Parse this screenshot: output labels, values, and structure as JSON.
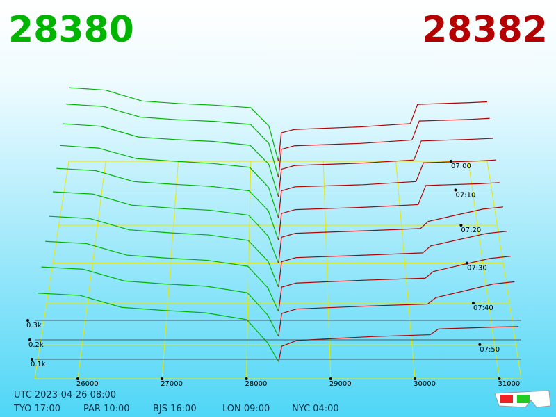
{
  "chart_data": {
    "type": "depth-3d",
    "bid_price": "28380",
    "ask_price": "28382",
    "timestamp": "UTC 2023-04-26 08:00",
    "clocks": [
      "TYO 17:00",
      "PAR 10:00",
      "BJS 16:00",
      "LON 09:00",
      "NYC 04:00"
    ],
    "bid_color": "#00b400",
    "ask_color": "#b40000",
    "xlim": [
      25490,
      31260
    ],
    "xticks": [
      26000,
      27000,
      28000,
      29000,
      30000,
      31000
    ],
    "zlim": [
      420,
      478
    ],
    "zticks": [
      {
        "value": 420,
        "label": "07:00"
      },
      {
        "value": 430,
        "label": "07:10"
      },
      {
        "value": 440,
        "label": "07:20"
      },
      {
        "value": 450,
        "label": "07:30"
      },
      {
        "value": 460,
        "label": "07:40"
      },
      {
        "value": 470,
        "label": "07:50"
      }
    ],
    "yticks": [
      {
        "value": 100,
        "label": "0.1k"
      },
      {
        "value": 200,
        "label": "0.2k"
      },
      {
        "value": 300,
        "label": "0.3k"
      }
    ],
    "bid_prices": [
      25490,
      26000,
      26500,
      27000,
      27500,
      28000,
      28250,
      28380
    ],
    "ask_prices": [
      28382,
      28420,
      28600,
      29500,
      30200,
      30300,
      31000,
      31260
    ],
    "snapshots": [
      {
        "time": 420,
        "bids": [
          440,
          425,
          360,
          345,
          335,
          320,
          210,
          0
        ],
        "asks": [
          0,
          170,
          190,
          205,
          225,
          340,
          350,
          355
        ]
      },
      {
        "time": 426,
        "bids": [
          432,
          418,
          355,
          340,
          330,
          312,
          200,
          0
        ],
        "asks": [
          0,
          165,
          186,
          200,
          220,
          332,
          342,
          348
        ]
      },
      {
        "time": 432,
        "bids": [
          425,
          410,
          348,
          333,
          322,
          300,
          190,
          0
        ],
        "asks": [
          0,
          160,
          182,
          196,
          214,
          325,
          335,
          340
        ]
      },
      {
        "time": 438,
        "bids": [
          415,
          400,
          340,
          325,
          312,
          290,
          175,
          0
        ],
        "asks": [
          0,
          155,
          178,
          190,
          208,
          316,
          326,
          332
        ]
      },
      {
        "time": 444,
        "bids": [
          405,
          392,
          330,
          315,
          303,
          278,
          165,
          0
        ],
        "asks": [
          0,
          150,
          172,
          185,
          200,
          308,
          318,
          324
        ]
      },
      {
        "time": 450,
        "bids": [
          396,
          384,
          322,
          306,
          294,
          266,
          150,
          0
        ],
        "asks": [
          0,
          144,
          166,
          180,
          192,
          232,
          300,
          312
        ]
      },
      {
        "time": 456,
        "bids": [
          386,
          374,
          312,
          296,
          284,
          254,
          140,
          0
        ],
        "asks": [
          0,
          138,
          160,
          174,
          186,
          224,
          292,
          304
        ]
      },
      {
        "time": 462,
        "bids": [
          376,
          364,
          302,
          286,
          274,
          242,
          126,
          0
        ],
        "asks": [
          0,
          130,
          152,
          168,
          178,
          214,
          284,
          296
        ]
      },
      {
        "time": 468,
        "bids": [
          366,
          354,
          292,
          276,
          264,
          230,
          112,
          0
        ],
        "asks": [
          0,
          120,
          144,
          160,
          170,
          204,
          276,
          288
        ]
      },
      {
        "time": 474,
        "bids": [
          356,
          344,
          282,
          266,
          254,
          218,
          98,
          0
        ],
        "asks": [
          0,
          80,
          110,
          130,
          140,
          170,
          180,
          182
        ]
      }
    ]
  }
}
